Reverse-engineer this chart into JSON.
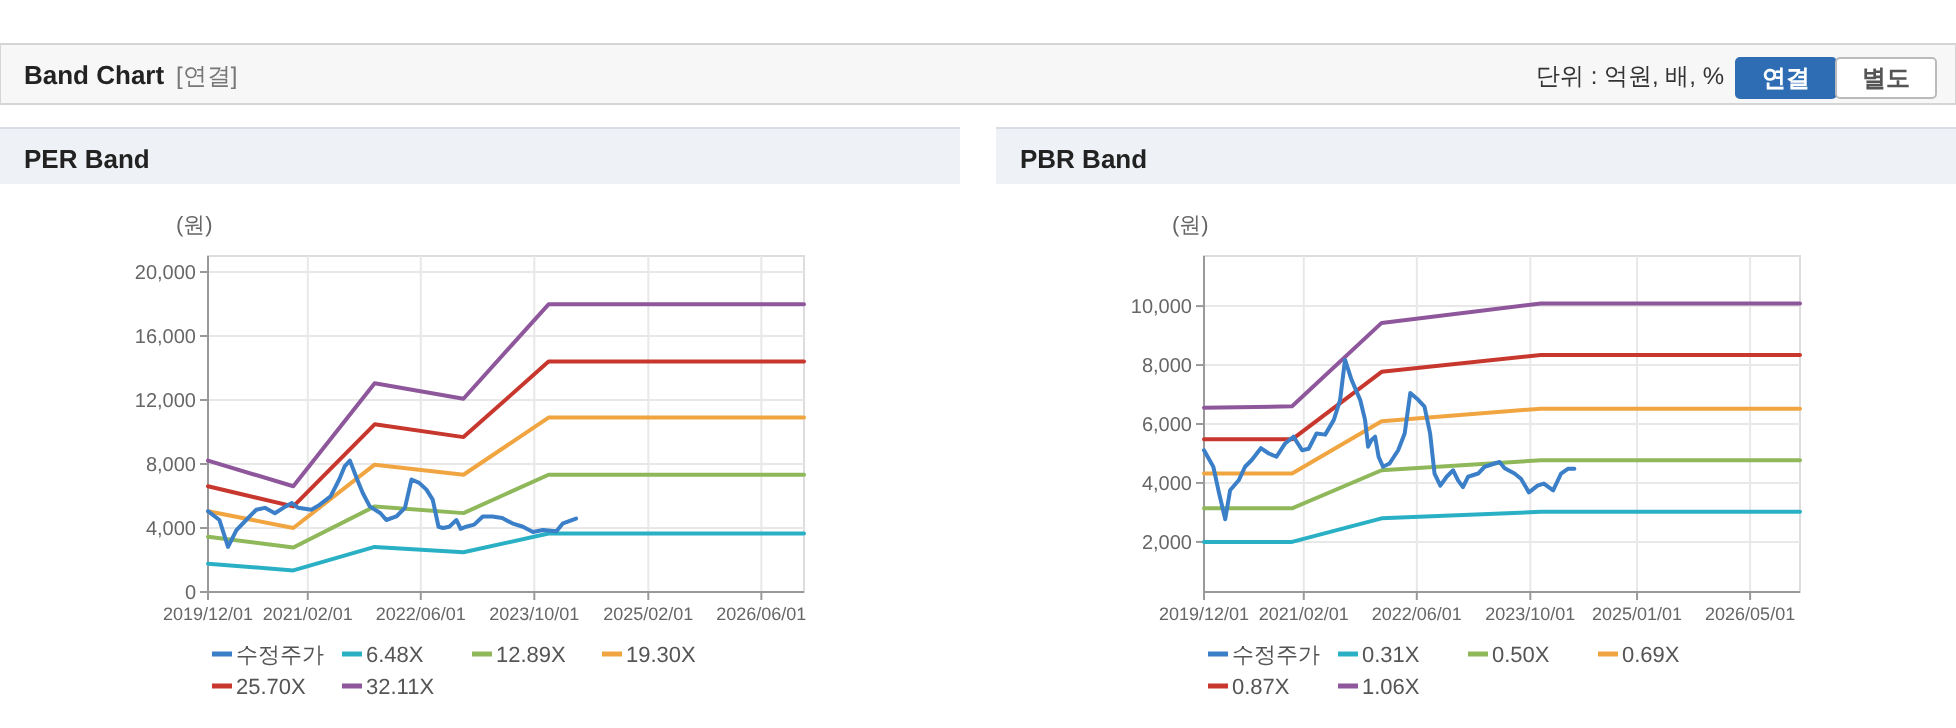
{
  "chart_data": [
    {
      "type": "other",
      "title": "Band Chart",
      "subtitle": "[연결]",
      "annotations": [
        "단위 : 억원, 배, %",
        "연결",
        "별도"
      ]
    },
    {
      "type": "line",
      "title": "PER Band",
      "ylabel": "(원)",
      "legend": "bottom",
      "grid": true,
      "marker": "none",
      "xlim": [
        "2019-12-01",
        "2026-12-01"
      ],
      "xticks": [
        {
          "value": "2019-12-01",
          "label": "2019/12/01"
        },
        {
          "value": "2021-02-01",
          "label": "2021/02/01"
        },
        {
          "value": "2022-06-01",
          "label": "2022/06/01"
        },
        {
          "value": "2023-10-01",
          "label": "2023/10/01"
        },
        {
          "value": "2025-02-01",
          "label": "2025/02/01"
        },
        {
          "value": "2026-06-01",
          "label": "2026/06/01"
        }
      ],
      "ylim": [
        0,
        21000
      ],
      "yticks": [
        {
          "value": 0,
          "label": "0"
        },
        {
          "value": 4000,
          "label": "4,000"
        },
        {
          "value": 8000,
          "label": "8,000"
        },
        {
          "value": 12000,
          "label": "12,000"
        },
        {
          "value": 16000,
          "label": "16,000"
        },
        {
          "value": 20000,
          "label": "20,000"
        }
      ],
      "series": [
        {
          "name": "수정주가",
          "color": "#3a7fc8",
          "x": [
            "2019-12-01",
            "2020-01-19",
            "2020-02-25",
            "2020-04-01",
            "2020-05-13",
            "2020-06-25",
            "2020-08-01",
            "2020-09-13",
            "2020-10-19",
            "2020-11-25",
            "2020-12-22",
            "2021-02-16",
            "2021-03-22",
            "2021-05-10",
            "2021-06-16",
            "2021-07-10",
            "2021-08-01",
            "2021-09-01",
            "2021-09-25",
            "2021-10-25",
            "2021-12-10",
            "2022-01-04",
            "2022-02-16",
            "2022-03-25",
            "2022-04-22",
            "2022-05-25",
            "2022-06-25",
            "2022-07-22",
            "2022-08-16",
            "2022-09-04",
            "2022-10-01",
            "2022-11-01",
            "2022-11-19",
            "2022-12-13",
            "2023-01-16",
            "2023-02-22",
            "2023-04-04",
            "2023-05-16",
            "2023-06-28",
            "2023-08-13",
            "2023-09-25",
            "2023-11-07",
            "2024-01-04",
            "2024-02-01",
            "2024-03-28"
          ],
          "values": [
            5050,
            4500,
            2820,
            3870,
            4500,
            5140,
            5260,
            4920,
            5260,
            5560,
            5260,
            5140,
            5430,
            5980,
            7030,
            7870,
            8210,
            7030,
            6190,
            5350,
            4920,
            4500,
            4720,
            5260,
            7030,
            6820,
            6400,
            5770,
            4080,
            4000,
            4080,
            4500,
            3950,
            4080,
            4210,
            4720,
            4720,
            4630,
            4290,
            4080,
            3750,
            3870,
            3790,
            4290,
            4590
          ]
        },
        {
          "name": "6.48X",
          "color": "#2ab0c5",
          "x": [
            "2019-12-01",
            "2020-12-01",
            "2021-11-15",
            "2022-12-01",
            "2023-12-01",
            "2026-12-01"
          ],
          "values": [
            1770,
            1350,
            2820,
            2480,
            3660,
            3660
          ]
        },
        {
          "name": "12.89X",
          "color": "#8fb85a",
          "x": [
            "2019-12-01",
            "2020-12-01",
            "2021-11-15",
            "2022-12-01",
            "2023-12-01",
            "2026-12-01"
          ],
          "values": [
            3450,
            2780,
            5350,
            4930,
            7330,
            7330
          ]
        },
        {
          "name": "19.30X",
          "color": "#f0a541",
          "x": [
            "2019-12-01",
            "2020-12-01",
            "2021-11-15",
            "2022-12-01",
            "2023-12-01",
            "2026-12-01"
          ],
          "values": [
            5050,
            4000,
            7960,
            7330,
            10900,
            10900
          ]
        },
        {
          "name": "25.70X",
          "color": "#c8372d",
          "x": [
            "2019-12-01",
            "2020-12-01",
            "2021-11-15",
            "2022-12-01",
            "2023-12-01",
            "2026-12-01"
          ],
          "values": [
            6610,
            5350,
            10480,
            9680,
            14400,
            14400
          ]
        },
        {
          "name": "32.11X",
          "color": "#8e579c",
          "x": [
            "2019-12-01",
            "2020-12-01",
            "2021-11-15",
            "2022-12-01",
            "2023-12-01",
            "2026-12-01"
          ],
          "values": [
            8210,
            6610,
            13050,
            12080,
            17980,
            17980
          ]
        }
      ]
    },
    {
      "type": "line",
      "title": "PBR Band",
      "ylabel": "(원)",
      "legend": "bottom",
      "grid": true,
      "marker": "none",
      "xlim": [
        "2019-12-01",
        "2026-12-01"
      ],
      "xticks": [
        {
          "value": "2019-12-01",
          "label": "2019/12/01"
        },
        {
          "value": "2021-02-01",
          "label": "2021/02/01"
        },
        {
          "value": "2022-06-01",
          "label": "2022/06/01"
        },
        {
          "value": "2023-10-01",
          "label": "2023/10/01"
        },
        {
          "value": "2025-01-01",
          "label": "2025/01/01"
        },
        {
          "value": "2026-05-01",
          "label": "2026/05/01"
        }
      ],
      "ylim": [
        300,
        11700
      ],
      "yticks": [
        {
          "value": 2000,
          "label": "2,000"
        },
        {
          "value": 4000,
          "label": "4,000"
        },
        {
          "value": 6000,
          "label": "6,000"
        },
        {
          "value": 8000,
          "label": "8,000"
        },
        {
          "value": 10000,
          "label": "10,000"
        }
      ],
      "series": [
        {
          "name": "수정주가",
          "color": "#3a7fc8",
          "x": [
            "2019-12-01",
            "2020-01-10",
            "2020-02-04",
            "2020-03-01",
            "2020-03-22",
            "2020-04-28",
            "2020-05-25",
            "2020-06-22",
            "2020-08-01",
            "2020-09-04",
            "2020-10-07",
            "2020-11-13",
            "2020-12-19",
            "2021-01-25",
            "2021-02-22",
            "2021-03-28",
            "2021-05-04",
            "2021-06-10",
            "2021-07-07",
            "2021-07-28",
            "2021-08-25",
            "2021-10-01",
            "2021-10-22",
            "2021-11-04",
            "2021-11-19",
            "2021-12-04",
            "2021-12-19",
            "2022-01-07",
            "2022-02-04",
            "2022-03-13",
            "2022-04-10",
            "2022-05-04",
            "2022-06-07",
            "2022-07-04",
            "2022-07-28",
            "2022-08-16",
            "2022-09-10",
            "2022-10-07",
            "2022-11-04",
            "2022-11-25",
            "2022-12-16",
            "2023-01-07",
            "2023-02-19",
            "2023-03-19",
            "2023-05-01",
            "2023-05-22",
            "2023-06-13",
            "2023-07-25",
            "2023-08-22",
            "2023-09-25",
            "2023-11-01",
            "2023-11-28",
            "2024-01-07",
            "2024-02-10",
            "2024-03-10",
            "2024-04-07"
          ],
          "values": [
            5110,
            4550,
            3640,
            2770,
            3750,
            4090,
            4550,
            4770,
            5180,
            5000,
            4890,
            5340,
            5570,
            5110,
            5160,
            5680,
            5640,
            6140,
            6820,
            8180,
            7500,
            6820,
            6140,
            5230,
            5460,
            5570,
            4890,
            4550,
            4660,
            5110,
            5680,
            7050,
            6820,
            6590,
            5680,
            4320,
            3910,
            4210,
            4430,
            4090,
            3860,
            4210,
            4320,
            4550,
            4660,
            4710,
            4500,
            4320,
            4140,
            3680,
            3910,
            3980,
            3750,
            4320,
            4480,
            4480
          ]
        },
        {
          "name": "0.31X",
          "color": "#2ab0c5",
          "x": [
            "2019-12-01",
            "2020-12-13",
            "2022-01-01",
            "2023-11-15",
            "2026-12-01"
          ],
          "values": [
            2000,
            2000,
            2800,
            3020,
            3020
          ]
        },
        {
          "name": "0.50X",
          "color": "#8fb85a",
          "x": [
            "2019-12-01",
            "2020-12-13",
            "2022-01-01",
            "2023-11-15",
            "2026-12-01"
          ],
          "values": [
            3140,
            3140,
            4430,
            4770,
            4770
          ]
        },
        {
          "name": "0.69X",
          "color": "#f0a541",
          "x": [
            "2019-12-01",
            "2020-12-13",
            "2022-01-01",
            "2023-11-15",
            "2026-12-01"
          ],
          "values": [
            4320,
            4320,
            6090,
            6520,
            6520
          ]
        },
        {
          "name": "0.87X",
          "color": "#c8372d",
          "x": [
            "2019-12-01",
            "2020-12-13",
            "2022-01-01",
            "2023-11-15",
            "2026-12-01"
          ],
          "values": [
            5480,
            5480,
            7770,
            8340,
            8340
          ]
        },
        {
          "name": "1.06X",
          "color": "#8e579c",
          "x": [
            "2019-12-01",
            "2020-12-13",
            "2022-01-01",
            "2023-11-15",
            "2026-12-01"
          ],
          "values": [
            6550,
            6600,
            9430,
            10090,
            10090
          ]
        }
      ]
    }
  ]
}
